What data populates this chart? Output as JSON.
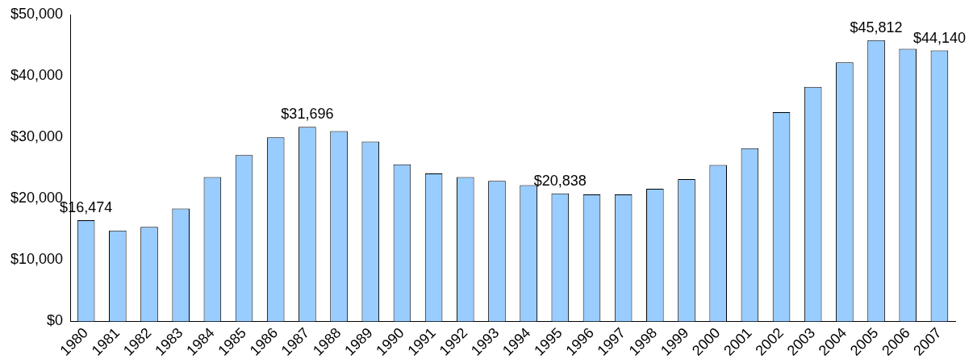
{
  "chart_data": {
    "type": "bar",
    "categories": [
      "1980",
      "1981",
      "1982",
      "1983",
      "1984",
      "1985",
      "1986",
      "1987",
      "1988",
      "1989",
      "1990",
      "1991",
      "1992",
      "1993",
      "1994",
      "1995",
      "1996",
      "1997",
      "1998",
      "1999",
      "2000",
      "2001",
      "2002",
      "2003",
      "2004",
      "2005",
      "2006",
      "2007"
    ],
    "values": [
      16474,
      14800,
      15400,
      18400,
      23500,
      27100,
      30000,
      31696,
      31000,
      29300,
      25600,
      24100,
      23500,
      22900,
      22200,
      20838,
      20700,
      20700,
      21600,
      23200,
      25500,
      28200,
      34100,
      38200,
      42200,
      45812,
      44400,
      44140
    ],
    "value_labels": [
      "$16,474",
      null,
      null,
      null,
      null,
      null,
      null,
      "$31,696",
      null,
      null,
      null,
      null,
      null,
      null,
      null,
      "$20,838",
      null,
      null,
      null,
      null,
      null,
      null,
      null,
      null,
      null,
      "$45,812",
      null,
      "$44,140"
    ],
    "color": "#99ccff",
    "ylim": [
      0,
      50000
    ],
    "yticks": [
      {
        "value": 0,
        "label": "$0"
      },
      {
        "value": 10000,
        "label": "$10,000"
      },
      {
        "value": 20000,
        "label": "$20,000"
      },
      {
        "value": 30000,
        "label": "$30,000"
      },
      {
        "value": 40000,
        "label": "$40,000"
      },
      {
        "value": 50000,
        "label": "$50,000"
      }
    ],
    "grid": false,
    "legend": false
  }
}
